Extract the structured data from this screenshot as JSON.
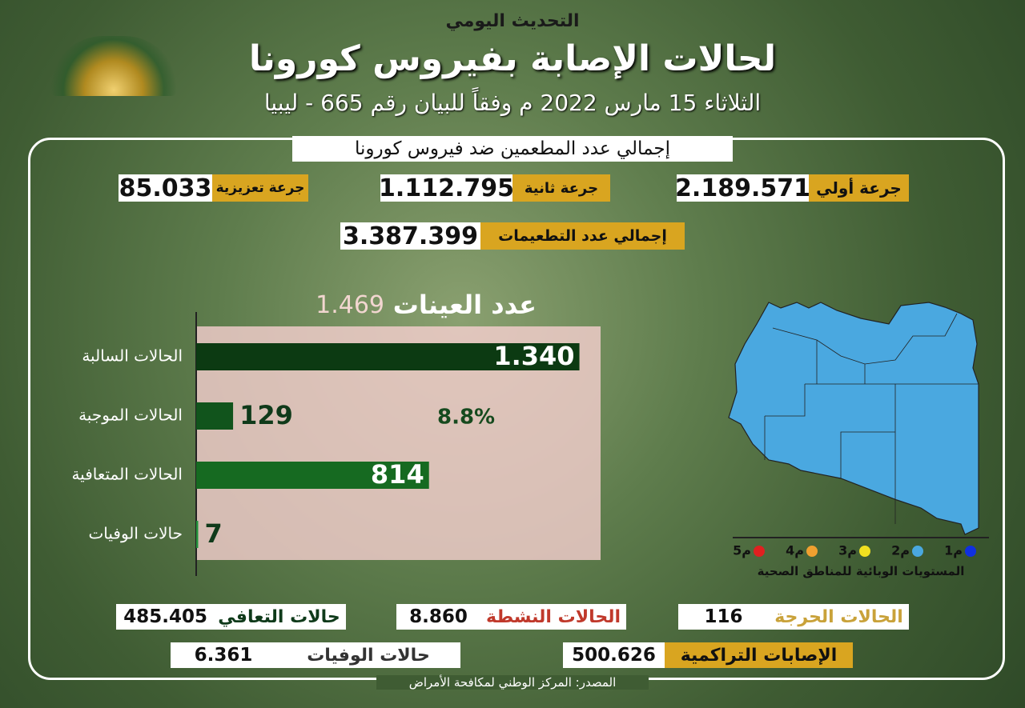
{
  "header": {
    "kicker": "التحديث اليومي",
    "title": "لحالات الإصابة بفيروس كورونا",
    "subtitle": "الثلاثاء 15 مارس 2022 م وفقاً للبيان رقم 665 - ليبيا"
  },
  "vaccination": {
    "title": "إجمالي عدد المطعمين ضد فيروس كورونا",
    "doses": [
      {
        "label": "جرعة أولي",
        "value": "2.189.571"
      },
      {
        "label": "جرعة ثانية",
        "value": "1.112.795"
      },
      {
        "label": "جرعة تعزيزية",
        "value": "85.033"
      }
    ],
    "total": {
      "label": "إجمالي عدد التطعيمات",
      "value": "3.387.399"
    }
  },
  "samples": {
    "label": "عدد العينات",
    "value": "1.469"
  },
  "chart_data": {
    "type": "bar",
    "orientation": "horizontal",
    "categories": [
      "الحالات السالبة",
      "الحالات الموجبة",
      "الحالات المتعافية",
      "حالات الوفيات"
    ],
    "values": [
      1340,
      129,
      814,
      7
    ],
    "value_labels": [
      "1.340",
      "129",
      "814",
      "7"
    ],
    "colors": [
      "#0c3a12",
      "#11541c",
      "#166a21",
      "#23923b"
    ],
    "xlim": [
      0,
      1400
    ],
    "annotation": "8.8%"
  },
  "map_legend": {
    "levels": [
      "م1",
      "م2",
      "م3",
      "م4",
      "م5"
    ],
    "colors": [
      "#1030e0",
      "#4aa8e0",
      "#f0e020",
      "#f0a030",
      "#e02020"
    ],
    "title": "المستويات الوبائية للمناطق الصحية"
  },
  "stats": {
    "recovered": {
      "label": "حالات التعافي",
      "value": "485.405"
    },
    "active": {
      "label": "الحالات النشطة",
      "value": "8.860"
    },
    "critical": {
      "label": "الحالات الحرجة",
      "value": "116"
    },
    "deaths": {
      "label": "حالات الوفيات",
      "value": "6.361"
    },
    "cumulative": {
      "label": "الإصابات التراكمية",
      "value": "500.626"
    }
  },
  "source": "المصدر: المركز الوطني لمكافحة الأمراض"
}
